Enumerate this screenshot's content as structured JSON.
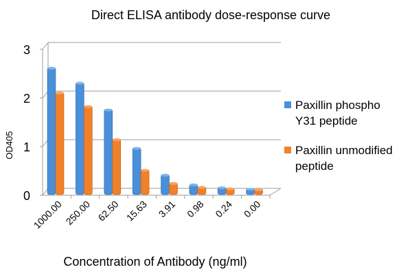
{
  "chart_data": {
    "type": "bar",
    "title": "Direct ELISA antibody dose-response curve",
    "xlabel": "Concentration of Antibody (ng/ml)",
    "ylabel": "OD405",
    "ylim": [
      0,
      3
    ],
    "yticks": [
      "0",
      "1",
      "2",
      "3"
    ],
    "grid": true,
    "legend_position": "right",
    "categories": [
      "1000.00",
      "250.00",
      "62.50",
      "15.63",
      "3.91",
      "0.98",
      "0.24",
      "0.00"
    ],
    "series": [
      {
        "name": "Paxillin phospho Y31 peptide",
        "color": "#4a8fd8",
        "values": [
          2.57,
          2.26,
          1.71,
          0.92,
          0.37,
          0.17,
          0.11,
          0.08
        ]
      },
      {
        "name": "Paxillin unmodified peptide",
        "color": "#f0802a",
        "values": [
          2.06,
          1.78,
          1.1,
          0.47,
          0.2,
          0.12,
          0.09,
          0.07
        ]
      }
    ],
    "legend_lines": [
      [
        "Paxillin phospho",
        "Y31 peptide"
      ],
      [
        "Paxillin unmodified",
        "peptide"
      ]
    ]
  }
}
